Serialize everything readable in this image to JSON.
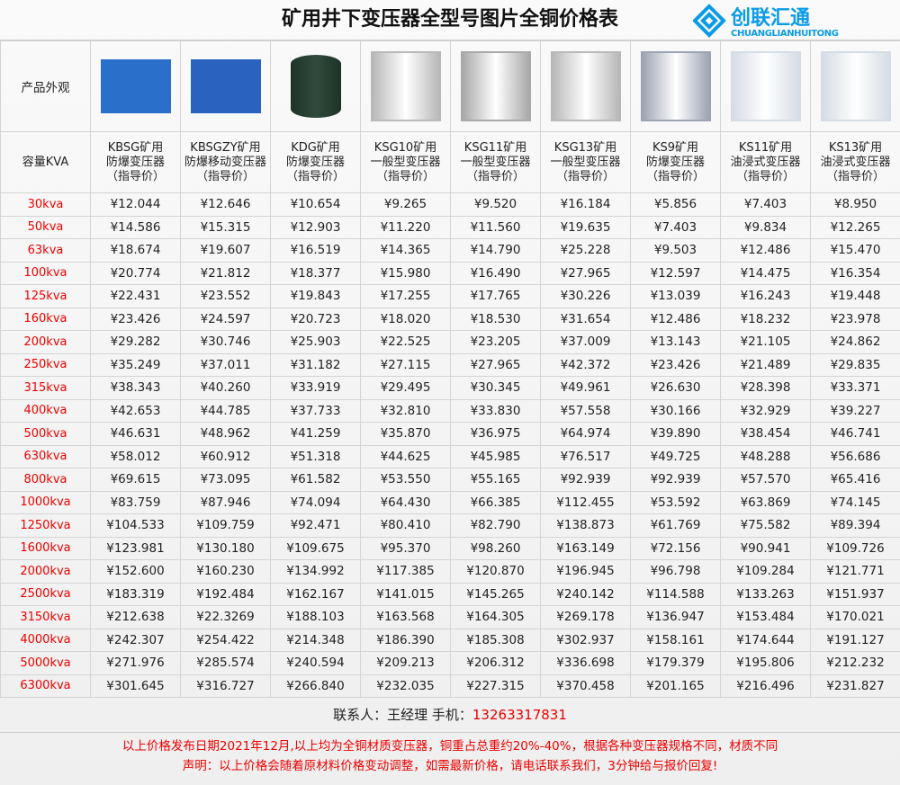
{
  "title": "矿用井下变压器全型号图片全铜价格表",
  "row_label_image": "产品外观",
  "row_label_capacity": "容量KVA",
  "products": [
    {
      "name": "KBSG矿用",
      "type": "防爆变压器",
      "note": "（指导价）",
      "color": "#2a6fc9"
    },
    {
      "name": "KBSGZY矿用",
      "type": "防爆移动变压器",
      "note": "（指导价）",
      "color": "#2a62c0"
    },
    {
      "name": "KDG矿用",
      "type": "防爆变压器",
      "note": "（指导价）",
      "color": "#2f4a3c"
    },
    {
      "name": "KSG10矿用",
      "type": "一般型变压器",
      "note": "（指导价）",
      "color": "#b8b8b8"
    },
    {
      "name": "KSG11矿用",
      "type": "一般型变压器",
      "note": "（指导价）",
      "color": "#a9a9a9"
    },
    {
      "name": "KSG13矿用",
      "type": "一般型变压器",
      "note": "（指导价）",
      "color": "#b8b8b8"
    },
    {
      "name": "KS9矿用",
      "type": "防爆变压器",
      "note": "（指导价）",
      "color": "#9ea3b3"
    },
    {
      "name": "KS11矿用",
      "type": "油浸式变压器",
      "note": "（指导价）",
      "color": "#d6dde6"
    },
    {
      "name": "KS13矿用",
      "type": "油浸式变压器",
      "note": "（指导价）",
      "color": "#d6dde6"
    }
  ],
  "rows": [
    {
      "kva": "30kva",
      "prices": [
        "¥12.044",
        "¥12.646",
        "¥10.654",
        "¥9.265",
        "¥9.520",
        "¥16.184",
        "¥5.856",
        "¥7.403",
        "¥8.950"
      ]
    },
    {
      "kva": "50kva",
      "prices": [
        "¥14.586",
        "¥15.315",
        "¥12.903",
        "¥11.220",
        "¥11.560",
        "¥19.635",
        "¥7.403",
        "¥9.834",
        "¥12.265"
      ]
    },
    {
      "kva": "63kva",
      "prices": [
        "¥18.674",
        "¥19.607",
        "¥16.519",
        "¥14.365",
        "¥14.790",
        "¥25.228",
        "¥9.503",
        "¥12.486",
        "¥15.470"
      ]
    },
    {
      "kva": "100kva",
      "prices": [
        "¥20.774",
        "¥21.812",
        "¥18.377",
        "¥15.980",
        "¥16.490",
        "¥27.965",
        "¥12.597",
        "¥14.475",
        "¥16.354"
      ]
    },
    {
      "kva": "125kva",
      "prices": [
        "¥22.431",
        "¥23.552",
        "¥19.843",
        "¥17.255",
        "¥17.765",
        "¥30.226",
        "¥13.039",
        "¥16.243",
        "¥19.448"
      ]
    },
    {
      "kva": "160kva",
      "prices": [
        "¥23.426",
        "¥24.597",
        "¥20.723",
        "¥18.020",
        "¥18.530",
        "¥31.654",
        "¥12.486",
        "¥18.232",
        "¥23.978"
      ]
    },
    {
      "kva": "200kva",
      "prices": [
        "¥29.282",
        "¥30.746",
        "¥25.903",
        "¥22.525",
        "¥23.205",
        "¥37.009",
        "¥13.143",
        "¥21.105",
        "¥24.862"
      ]
    },
    {
      "kva": "250kva",
      "prices": [
        "¥35.249",
        "¥37.011",
        "¥31.182",
        "¥27.115",
        "¥27.965",
        "¥42.372",
        "¥23.426",
        "¥21.489",
        "¥29.835"
      ]
    },
    {
      "kva": "315kva",
      "prices": [
        "¥38.343",
        "¥40.260",
        "¥33.919",
        "¥29.495",
        "¥30.345",
        "¥49.961",
        "¥26.630",
        "¥28.398",
        "¥33.371"
      ]
    },
    {
      "kva": "400kva",
      "prices": [
        "¥42.653",
        "¥44.785",
        "¥37.733",
        "¥32.810",
        "¥33.830",
        "¥57.558",
        "¥30.166",
        "¥32.929",
        "¥39.227"
      ]
    },
    {
      "kva": "500kva",
      "prices": [
        "¥46.631",
        "¥48.962",
        "¥41.259",
        "¥35.870",
        "¥36.975",
        "¥64.974",
        "¥39.890",
        "¥38.454",
        "¥46.741"
      ]
    },
    {
      "kva": "630kva",
      "prices": [
        "¥58.012",
        "¥60.912",
        "¥51.318",
        "¥44.625",
        "¥45.985",
        "¥76.517",
        "¥49.725",
        "¥48.288",
        "¥56.686"
      ]
    },
    {
      "kva": "800kva",
      "prices": [
        "¥69.615",
        "¥73.095",
        "¥61.582",
        "¥53.550",
        "¥55.165",
        "¥92.939",
        "¥92.939",
        "¥57.570",
        "¥65.416"
      ]
    },
    {
      "kva": "1000kva",
      "prices": [
        "¥83.759",
        "¥87.946",
        "¥74.094",
        "¥64.430",
        "¥66.385",
        "¥112.455",
        "¥53.592",
        "¥63.869",
        "¥74.145"
      ]
    },
    {
      "kva": "1250kva",
      "prices": [
        "¥104.533",
        "¥109.759",
        "¥92.471",
        "¥80.410",
        "¥82.790",
        "¥138.873",
        "¥61.769",
        "¥75.582",
        "¥89.394"
      ]
    },
    {
      "kva": "1600kva",
      "prices": [
        "¥123.981",
        "¥130.180",
        "¥109.675",
        "¥95.370",
        "¥98.260",
        "¥163.149",
        "¥72.156",
        "¥90.941",
        "¥109.726"
      ]
    },
    {
      "kva": "2000kva",
      "prices": [
        "¥152.600",
        "¥160.230",
        "¥134.992",
        "¥117.385",
        "¥120.870",
        "¥196.945",
        "¥96.798",
        "¥109.284",
        "¥121.771"
      ]
    },
    {
      "kva": "2500kva",
      "prices": [
        "¥183.319",
        "¥192.484",
        "¥162.167",
        "¥141.015",
        "¥145.265",
        "¥240.142",
        "¥114.588",
        "¥133.263",
        "¥151.937"
      ]
    },
    {
      "kva": "3150kva",
      "prices": [
        "¥212.638",
        "¥22.3269",
        "¥188.103",
        "¥163.568",
        "¥164.305",
        "¥269.178",
        "¥136.947",
        "¥153.484",
        "¥170.021"
      ]
    },
    {
      "kva": "4000kva",
      "prices": [
        "¥242.307",
        "¥254.422",
        "¥214.348",
        "¥186.390",
        "¥185.308",
        "¥302.937",
        "¥158.161",
        "¥174.644",
        "¥191.127"
      ]
    },
    {
      "kva": "5000kva",
      "prices": [
        "¥271.976",
        "¥285.574",
        "¥240.594",
        "¥209.213",
        "¥206.312",
        "¥336.698",
        "¥179.379",
        "¥195.806",
        "¥212.232"
      ]
    },
    {
      "kva": "6300kva",
      "prices": [
        "¥301.645",
        "¥316.727",
        "¥266.840",
        "¥232.035",
        "¥227.315",
        "¥370.458",
        "¥201.165",
        "¥216.496",
        "¥231.827"
      ]
    }
  ],
  "contact": {
    "label": "联系人：王经理  手机：",
    "phone": "13263317831"
  },
  "notes": [
    "以上价格发布日期2021年12月,以上均为全铜材质变压器，铜重占总重约20%-40%，根据各种变压器规格不同，材质不同",
    "声明：以上价格会随着原材料价格变动调整，如需最新价格，请电话联系我们，3分钟给与报价回复!"
  ],
  "watermark": {
    "cn": "创联汇通",
    "en": "CHUANGLIANHUITONG",
    "color": "#0a9be8"
  }
}
